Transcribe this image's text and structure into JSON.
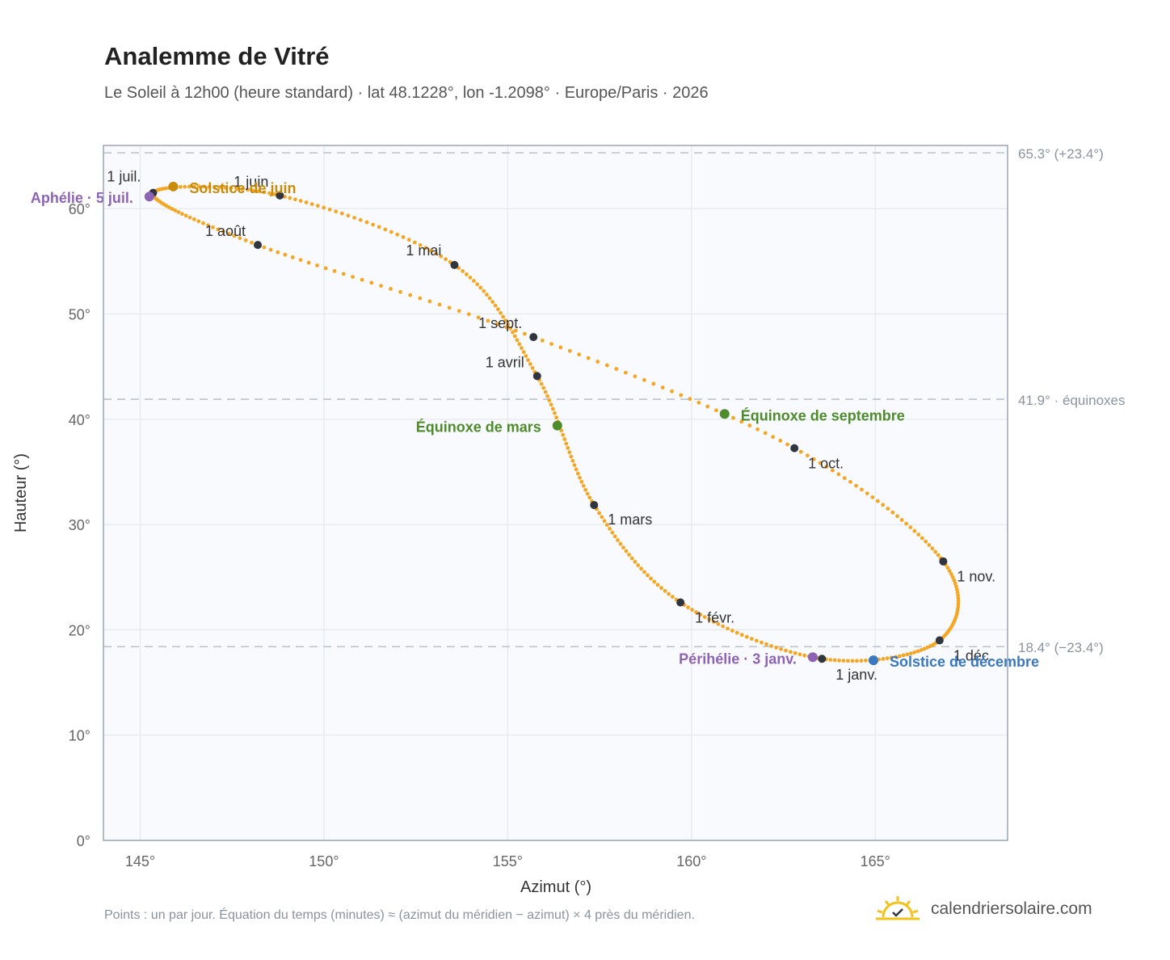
{
  "title": "Analemme de Vitré",
  "subtitle": "Le Soleil à 12h00 (heure standard) · lat 48.1228°, lon -1.2098° · Europe/Paris · 2026",
  "footnote": "Points : un par jour. Équation du temps (minutes) ≈ (azimut du méridien − azimut) × 4 près du méridien.",
  "brand": {
    "name": "calendriersolaire.com",
    "icon": "sun-logo-icon"
  },
  "colors": {
    "curve": "#f5a623",
    "month_marker": "#2f3640",
    "solstice_june": "#c98b0a",
    "solstice_december": "#3a78c2",
    "equinox": "#4e8c2b",
    "apsis": "#8e63b5",
    "plot_bg": "#f8fafd",
    "grid": "#e4e8ee",
    "axis": "#9aa5b5"
  },
  "chart_data": {
    "type": "scatter",
    "xlabel": "Azimut (°)",
    "ylabel": "Hauteur (°)",
    "xlim": [
      144,
      168.6
    ],
    "ylim": [
      0,
      66
    ],
    "xticks": [
      145,
      150,
      155,
      160,
      165
    ],
    "xtick_labels": [
      "145°",
      "150°",
      "155°",
      "160°",
      "165°"
    ],
    "yticks": [
      0,
      10,
      20,
      30,
      40,
      50,
      60
    ],
    "ytick_labels": [
      "0°",
      "10°",
      "20°",
      "30°",
      "40°",
      "50°",
      "60°"
    ],
    "grid": true,
    "series": [
      {
        "points_per_day": true,
        "months": [
          {
            "label": "1 janv.",
            "azimuth": 163.55,
            "altitude": 17.25
          },
          {
            "label": "1 févr.",
            "azimuth": 159.7,
            "altitude": 22.6
          },
          {
            "label": "1 mars",
            "azimuth": 157.35,
            "altitude": 31.85
          },
          {
            "label": "1 avril",
            "azimuth": 155.8,
            "altitude": 44.1
          },
          {
            "label": "1 mai",
            "azimuth": 153.55,
            "altitude": 54.65
          },
          {
            "label": "1 juin",
            "azimuth": 148.8,
            "altitude": 61.25
          },
          {
            "label": "1 juil.",
            "azimuth": 145.35,
            "altitude": 61.5
          },
          {
            "label": "1 août",
            "azimuth": 148.2,
            "altitude": 56.55
          },
          {
            "label": "1 sept.",
            "azimuth": 155.7,
            "altitude": 47.8
          },
          {
            "label": "1 oct.",
            "azimuth": 162.8,
            "altitude": 37.25
          },
          {
            "label": "1 nov.",
            "azimuth": 166.85,
            "altitude": 26.5
          },
          {
            "label": "1 déc.",
            "azimuth": 166.75,
            "altitude": 19.0
          }
        ]
      }
    ],
    "events": [
      {
        "label": "Solstice de juin",
        "azimuth": 145.9,
        "altitude": 62.1,
        "color_key": "solstice_june"
      },
      {
        "label": "Aphélie · 5 juil.",
        "azimuth": 145.25,
        "altitude": 61.15,
        "color_key": "apsis"
      },
      {
        "label": "Équinoxe de mars",
        "azimuth": 156.35,
        "altitude": 39.4,
        "color_key": "equinox"
      },
      {
        "label": "Équinoxe de septembre",
        "azimuth": 160.9,
        "altitude": 40.5,
        "color_key": "equinox"
      },
      {
        "label": "Périhélie · 3 janv.",
        "azimuth": 163.3,
        "altitude": 17.4,
        "color_key": "apsis"
      },
      {
        "label": "Solstice de décembre",
        "azimuth": 164.95,
        "altitude": 17.1,
        "color_key": "solstice_december"
      }
    ],
    "reference_lines": [
      {
        "altitude": 65.3,
        "label": "65.3° (+23.4°)"
      },
      {
        "altitude": 41.9,
        "label": "41.9° · équinoxes"
      },
      {
        "altitude": 18.4,
        "label": "18.4° (−23.4°)"
      }
    ]
  }
}
